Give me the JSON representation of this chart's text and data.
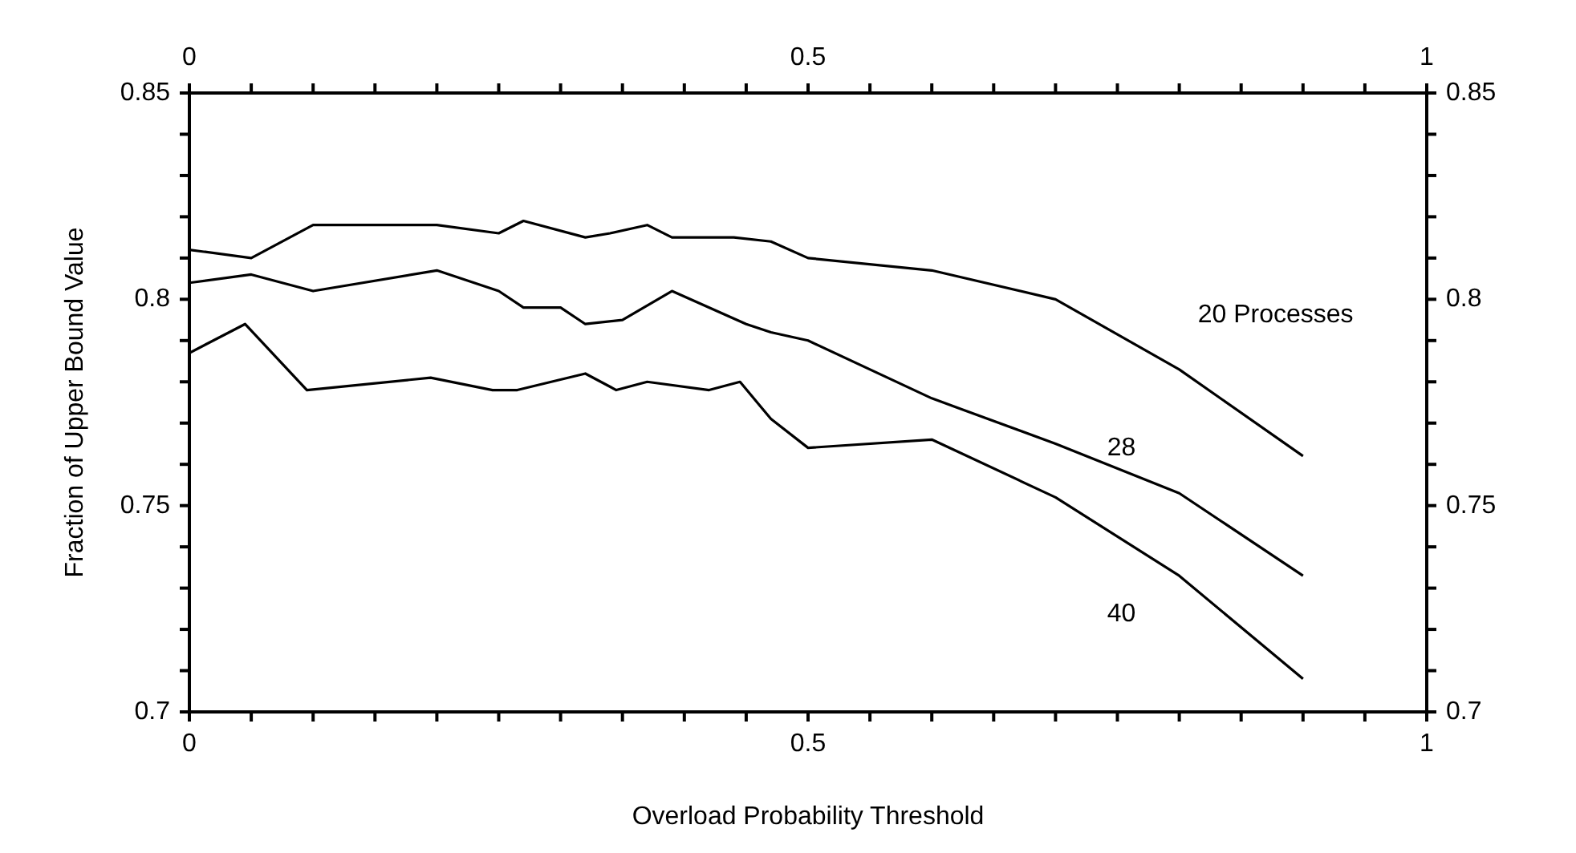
{
  "chart_data": {
    "type": "line",
    "xlabel": "Overload Probability Threshold",
    "ylabel": "Fraction of Upper Bound Value",
    "xlim": [
      0,
      1
    ],
    "xticks": [
      0,
      {
        "value": 0.05,
        "label": null
      },
      {
        "value": 0.1,
        "label": null
      },
      {
        "value": 0.15,
        "label": null
      },
      {
        "value": 0.2,
        "label": null
      },
      {
        "value": 0.25,
        "label": null
      },
      {
        "value": 0.3,
        "label": null
      },
      {
        "value": 0.35,
        "label": null
      },
      {
        "value": 0.4,
        "label": null
      },
      {
        "value": 0.45,
        "label": null
      },
      0.5,
      {
        "value": 0.55,
        "label": null
      },
      {
        "value": 0.6,
        "label": null
      },
      {
        "value": 0.65,
        "label": null
      },
      {
        "value": 0.7,
        "label": null
      },
      {
        "value": 0.75,
        "label": null
      },
      {
        "value": 0.8,
        "label": null
      },
      {
        "value": 0.85,
        "label": null
      },
      {
        "value": 0.9,
        "label": null
      },
      {
        "value": 0.95,
        "label": null
      },
      1
    ],
    "x2lim": [
      0,
      1
    ],
    "x2ticks": [
      0,
      {
        "value": 0.05,
        "label": null
      },
      {
        "value": 0.1,
        "label": null
      },
      {
        "value": 0.15,
        "label": null
      },
      {
        "value": 0.2,
        "label": null
      },
      {
        "value": 0.25,
        "label": null
      },
      {
        "value": 0.3,
        "label": null
      },
      {
        "value": 0.35,
        "label": null
      },
      {
        "value": 0.4,
        "label": null
      },
      {
        "value": 0.45,
        "label": null
      },
      0.5,
      {
        "value": 0.55,
        "label": null
      },
      {
        "value": 0.6,
        "label": null
      },
      {
        "value": 0.65,
        "label": null
      },
      {
        "value": 0.7,
        "label": null
      },
      {
        "value": 0.75,
        "label": null
      },
      {
        "value": 0.8,
        "label": null
      },
      {
        "value": 0.85,
        "label": null
      },
      {
        "value": 0.9,
        "label": null
      },
      {
        "value": 0.95,
        "label": null
      },
      1
    ],
    "ylim": [
      0.7,
      0.85
    ],
    "yticks": [
      0.7,
      {
        "value": 0.71,
        "label": null
      },
      {
        "value": 0.72,
        "label": null
      },
      {
        "value": 0.73,
        "label": null
      },
      {
        "value": 0.74,
        "label": null
      },
      0.75,
      {
        "value": 0.76,
        "label": null
      },
      {
        "value": 0.77,
        "label": null
      },
      {
        "value": 0.78,
        "label": null
      },
      {
        "value": 0.79,
        "label": null
      },
      0.8,
      {
        "value": 0.81,
        "label": null
      },
      {
        "value": 0.82,
        "label": null
      },
      {
        "value": 0.83,
        "label": null
      },
      {
        "value": 0.84,
        "label": null
      },
      0.85
    ],
    "y2lim": [
      0.7,
      0.85
    ],
    "y2ticks": [
      0.7,
      {
        "value": 0.71,
        "label": null
      },
      {
        "value": 0.72,
        "label": null
      },
      {
        "value": 0.73,
        "label": null
      },
      {
        "value": 0.74,
        "label": null
      },
      0.75,
      {
        "value": 0.76,
        "label": null
      },
      {
        "value": 0.77,
        "label": null
      },
      {
        "value": 0.78,
        "label": null
      },
      {
        "value": 0.79,
        "label": null
      },
      0.8,
      {
        "value": 0.81,
        "label": null
      },
      {
        "value": 0.82,
        "label": null
      },
      {
        "value": 0.83,
        "label": null
      },
      {
        "value": 0.84,
        "label": null
      },
      0.85
    ],
    "grid": false,
    "legend": false,
    "marker": "none",
    "line_style": "solid",
    "series": [
      {
        "name": "20 Processes",
        "color": "#000000",
        "x": [
          0,
          0.05,
          0.1,
          0.2,
          0.25,
          0.27,
          0.32,
          0.34,
          0.37,
          0.39,
          0.44,
          0.47,
          0.5,
          0.6,
          0.7,
          0.8,
          0.9
        ],
        "values": [
          0.812,
          0.81,
          0.818,
          0.818,
          0.816,
          0.819,
          0.815,
          0.816,
          0.818,
          0.815,
          0.815,
          0.814,
          0.81,
          0.807,
          0.8,
          0.783,
          0.762
        ]
      },
      {
        "name": "28",
        "color": "#000000",
        "x": [
          0,
          0.05,
          0.1,
          0.2,
          0.25,
          0.27,
          0.3,
          0.32,
          0.35,
          0.39,
          0.45,
          0.47,
          0.5,
          0.6,
          0.7,
          0.8,
          0.9
        ],
        "values": [
          0.804,
          0.806,
          0.802,
          0.807,
          0.802,
          0.798,
          0.798,
          0.794,
          0.795,
          0.802,
          0.794,
          0.792,
          0.79,
          0.776,
          0.765,
          0.753,
          0.733
        ]
      },
      {
        "name": "40",
        "color": "#000000",
        "x": [
          0,
          0.045,
          0.095,
          0.195,
          0.245,
          0.265,
          0.32,
          0.345,
          0.37,
          0.42,
          0.445,
          0.47,
          0.5,
          0.6,
          0.7,
          0.8,
          0.9
        ],
        "values": [
          0.787,
          0.794,
          0.778,
          0.781,
          0.778,
          0.778,
          0.782,
          0.778,
          0.78,
          0.778,
          0.78,
          0.771,
          0.764,
          0.766,
          0.752,
          0.733,
          0.708
        ]
      }
    ]
  }
}
